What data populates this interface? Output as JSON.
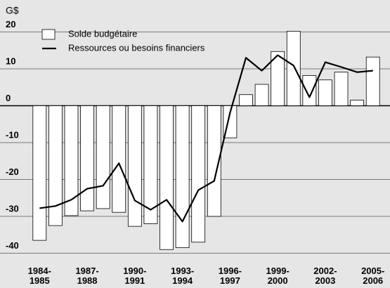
{
  "chart_data": {
    "type": "bar_line",
    "y_axis_label": "G$",
    "categories": [
      "1984-\n1985",
      null,
      null,
      "1987-\n1988",
      null,
      null,
      "1990-\n1991",
      null,
      null,
      "1993-\n1994",
      null,
      null,
      "1996-\n1997",
      null,
      null,
      "1999-\n2000",
      null,
      null,
      "2002-\n2003",
      null,
      null,
      "2005-\n2006"
    ],
    "series": [
      {
        "name": "Solde budgétaire",
        "type": "bar",
        "color": "#ffffff",
        "edge_color": "#000000",
        "values": [
          -36.5,
          -32.5,
          -29.8,
          -28.5,
          -27.9,
          -28.9,
          -32.7,
          -32.0,
          -39.0,
          -38.5,
          -37.0,
          -30.0,
          -8.7,
          3.0,
          5.8,
          14.7,
          20.2,
          8.2,
          7.0,
          9.1,
          1.5,
          13.2
        ]
      },
      {
        "name": "Ressources ou besoins financiers",
        "type": "line",
        "color": "#000000",
        "values": [
          -27.8,
          -27.2,
          -25.5,
          -22.5,
          -21.7,
          -15.6,
          -25.7,
          -28.2,
          -25.5,
          -31.4,
          -22.9,
          -20.4,
          -1.9,
          13.0,
          9.5,
          13.7,
          10.9,
          2.3,
          11.8,
          10.5,
          9.1,
          9.5
        ]
      }
    ],
    "ylim": [
      -42,
      22
    ],
    "yticks": [
      20,
      10,
      0,
      -10,
      -20,
      -30,
      -40
    ],
    "grid": true,
    "legend": "upper left"
  }
}
